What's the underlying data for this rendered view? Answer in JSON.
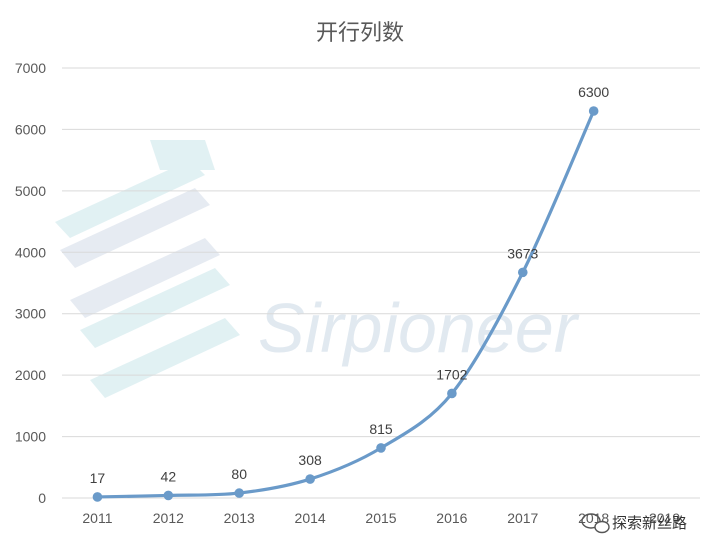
{
  "chart_data": {
    "type": "line",
    "title": "开行列数",
    "xlabel": "",
    "ylabel": "",
    "categories": [
      "2011",
      "2012",
      "2013",
      "2014",
      "2015",
      "2016",
      "2017",
      "2018",
      "2019"
    ],
    "series": [
      {
        "values": [
          17,
          42,
          80,
          308,
          815,
          1702,
          3673,
          6300,
          null
        ]
      }
    ],
    "ylim": [
      0,
      7000
    ],
    "yticks": [
      0,
      1000,
      2000,
      3000,
      4000,
      5000,
      6000,
      7000
    ],
    "grid": true,
    "legend": "none",
    "line_color": "#6a9ac9"
  },
  "watermark": {
    "text": "Sirpioneer",
    "icon": "sirpioneer-logo-icon"
  },
  "footer": {
    "text": "探索新丝路",
    "icon": "wechat-icon"
  }
}
